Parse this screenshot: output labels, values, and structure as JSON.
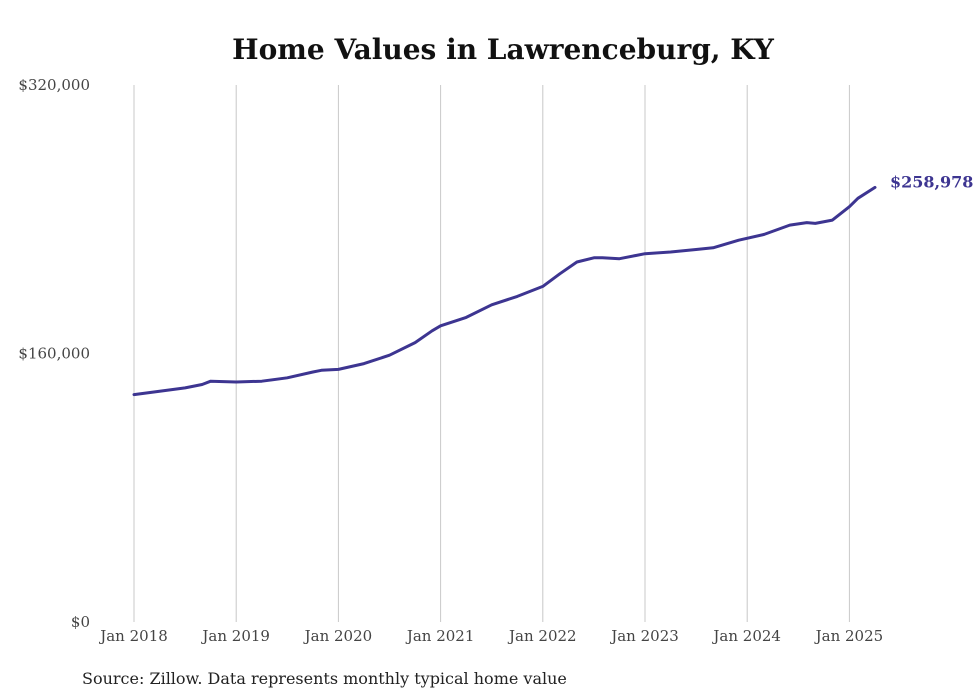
{
  "chart_data": {
    "type": "line",
    "title": "Home Values in Lawrenceburg, KY",
    "xlabel": "",
    "ylabel": "",
    "ylim": [
      0,
      320000
    ],
    "y_ticks": [
      0,
      160000,
      320000
    ],
    "y_tick_labels": [
      "$0",
      "$160,000",
      "$320,000"
    ],
    "x_tick_labels": [
      "Jan 2018",
      "Jan 2019",
      "Jan 2020",
      "Jan 2021",
      "Jan 2022",
      "Jan 2023",
      "Jan 2024",
      "Jan 2025"
    ],
    "grid": "vertical",
    "line_color": "#3d3591",
    "end_label": "$258,978",
    "series": [
      {
        "x": [
          "2018-01",
          "2018-04",
          "2018-07",
          "2018-09",
          "2018-10",
          "2019-01",
          "2019-04",
          "2019-07",
          "2019-10",
          "2019-11",
          "2020-01",
          "2020-04",
          "2020-07",
          "2020-10",
          "2020-12",
          "2021-01",
          "2021-04",
          "2021-07",
          "2021-10",
          "2022-01",
          "2022-03",
          "2022-05",
          "2022-07",
          "2022-08",
          "2022-10",
          "2023-01",
          "2023-04",
          "2023-07",
          "2023-09",
          "2023-12",
          "2024-03",
          "2024-06",
          "2024-08",
          "2024-09",
          "2024-11",
          "2025-01",
          "2025-02",
          "2025-04"
        ],
        "values": [
          135500,
          137500,
          139500,
          141500,
          143500,
          143000,
          143500,
          145500,
          149000,
          150000,
          150500,
          154000,
          159000,
          166500,
          173500,
          176500,
          181500,
          189000,
          194000,
          200000,
          207500,
          214500,
          217000,
          217000,
          216500,
          219500,
          220500,
          222000,
          223000,
          227500,
          231000,
          236500,
          238000,
          237500,
          239500,
          247500,
          252500,
          258978
        ]
      }
    ]
  },
  "footer": {
    "source": "Source: Zillow. Data represents monthly typical home value"
  }
}
